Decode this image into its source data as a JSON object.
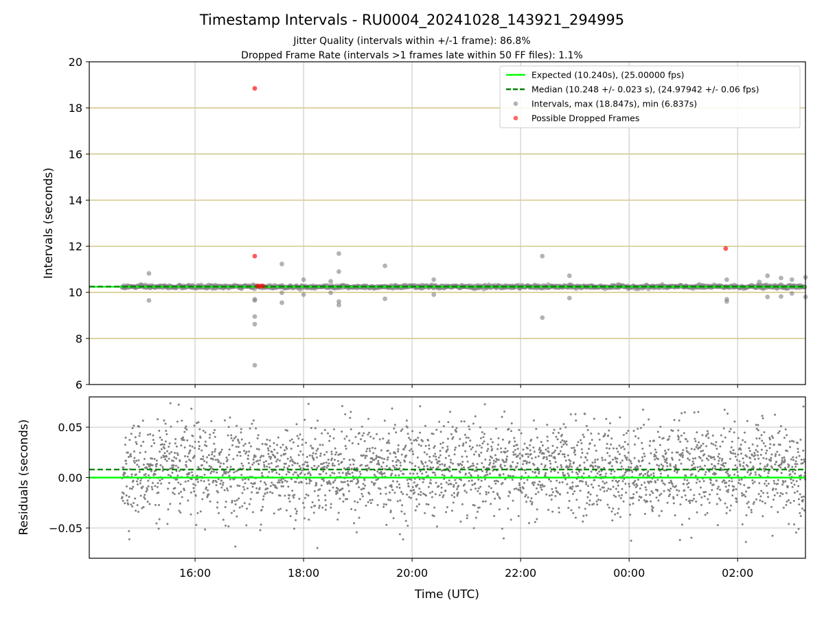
{
  "chart_data": [
    {
      "type": "scatter",
      "title": "Timestamp Intervals - RU0004_20241028_143921_294995",
      "subtitle_lines": [
        "Jitter Quality (intervals within +/-1 frame): 86.8%",
        "Dropped Frame Rate (intervals >1 frames late within 50 FF files): 1.1%"
      ],
      "xlabel": "",
      "ylabel": "Intervals (seconds)",
      "ylim": [
        6,
        20
      ],
      "xlim_hours": [
        14.05,
        27.25
      ],
      "yticks": [
        "6",
        "8",
        "10",
        "12",
        "14",
        "16",
        "18",
        "20"
      ],
      "ytick_values": [
        6,
        8,
        10,
        12,
        14,
        16,
        18,
        20
      ],
      "grid": true,
      "legend_placement": "top-right",
      "legend": [
        {
          "label": "Expected (10.240s), (25.00000 fps)",
          "kind": "line",
          "color": "#00ff00"
        },
        {
          "label": "Median (10.248 +/- 0.023 s), (24.97942 +/- 0.06 fps)",
          "kind": "dashed",
          "color": "#008000"
        },
        {
          "label": "Intervals, max (18.847s), min (6.837s)",
          "kind": "marker",
          "color": "#808080"
        },
        {
          "label": "Possible Dropped Frames",
          "kind": "marker",
          "color": "#ff0000"
        }
      ],
      "expected_value": 10.24,
      "median_value": 10.248,
      "series": [
        {
          "name": "Intervals, max (18.847s), min (6.837s)",
          "color": "#808080",
          "x_range_hours": [
            14.65,
            27.25
          ],
          "baseline": 10.24,
          "outliers": [
            {
              "x": 15.15,
              "y": 10.82
            },
            {
              "x": 15.15,
              "y": 9.65
            },
            {
              "x": 17.1,
              "y": 9.7
            },
            {
              "x": 17.1,
              "y": 9.65
            },
            {
              "x": 17.1,
              "y": 8.95
            },
            {
              "x": 17.1,
              "y": 8.62
            },
            {
              "x": 17.1,
              "y": 6.837
            },
            {
              "x": 17.6,
              "y": 11.23
            },
            {
              "x": 17.6,
              "y": 9.55
            },
            {
              "x": 17.6,
              "y": 9.98
            },
            {
              "x": 18.0,
              "y": 10.55
            },
            {
              "x": 18.0,
              "y": 9.9
            },
            {
              "x": 18.65,
              "y": 11.68
            },
            {
              "x": 18.65,
              "y": 10.9
            },
            {
              "x": 18.65,
              "y": 9.6
            },
            {
              "x": 18.65,
              "y": 9.45
            },
            {
              "x": 18.5,
              "y": 10.48
            },
            {
              "x": 18.5,
              "y": 9.98
            },
            {
              "x": 19.5,
              "y": 11.15
            },
            {
              "x": 19.5,
              "y": 9.72
            },
            {
              "x": 20.4,
              "y": 10.55
            },
            {
              "x": 20.4,
              "y": 9.9
            },
            {
              "x": 22.4,
              "y": 11.57
            },
            {
              "x": 22.4,
              "y": 8.9
            },
            {
              "x": 22.9,
              "y": 10.72
            },
            {
              "x": 22.9,
              "y": 9.75
            },
            {
              "x": 25.8,
              "y": 10.55
            },
            {
              "x": 25.8,
              "y": 9.7
            },
            {
              "x": 25.8,
              "y": 9.6
            },
            {
              "x": 26.4,
              "y": 10.45
            },
            {
              "x": 26.55,
              "y": 10.72
            },
            {
              "x": 26.55,
              "y": 9.8
            },
            {
              "x": 26.8,
              "y": 10.62
            },
            {
              "x": 26.8,
              "y": 9.82
            },
            {
              "x": 27.0,
              "y": 10.55
            },
            {
              "x": 27.0,
              "y": 9.95
            },
            {
              "x": 27.25,
              "y": 10.65
            },
            {
              "x": 27.25,
              "y": 9.8
            }
          ]
        },
        {
          "name": "Possible Dropped Frames",
          "color": "#ff0000",
          "points": [
            {
              "x": 17.1,
              "y": 18.847
            },
            {
              "x": 17.1,
              "y": 11.57
            },
            {
              "x": 17.15,
              "y": 10.27
            },
            {
              "x": 17.2,
              "y": 10.27
            },
            {
              "x": 17.25,
              "y": 10.27
            },
            {
              "x": 25.78,
              "y": 11.9
            }
          ]
        }
      ]
    },
    {
      "type": "scatter",
      "xlabel": "Time (UTC)",
      "ylabel": "Residuals (seconds)",
      "ylim": [
        -0.08,
        0.08
      ],
      "xlim_hours": [
        14.05,
        27.25
      ],
      "yticks": [
        "−0.05",
        "0.00",
        "0.05"
      ],
      "ytick_values": [
        -0.05,
        0,
        0.05
      ],
      "xticks": [
        "16:00",
        "18:00",
        "20:00",
        "22:00",
        "00:00",
        "02:00"
      ],
      "xtick_hours": [
        16,
        18,
        20,
        22,
        24,
        26
      ],
      "grid": true,
      "expected_value": 0.0,
      "median_value": 0.008,
      "series": [
        {
          "name": "Residuals",
          "color": "#808080",
          "x_range_hours": [
            14.65,
            27.25
          ],
          "mean": 0.008,
          "std": 0.023
        }
      ]
    }
  ]
}
